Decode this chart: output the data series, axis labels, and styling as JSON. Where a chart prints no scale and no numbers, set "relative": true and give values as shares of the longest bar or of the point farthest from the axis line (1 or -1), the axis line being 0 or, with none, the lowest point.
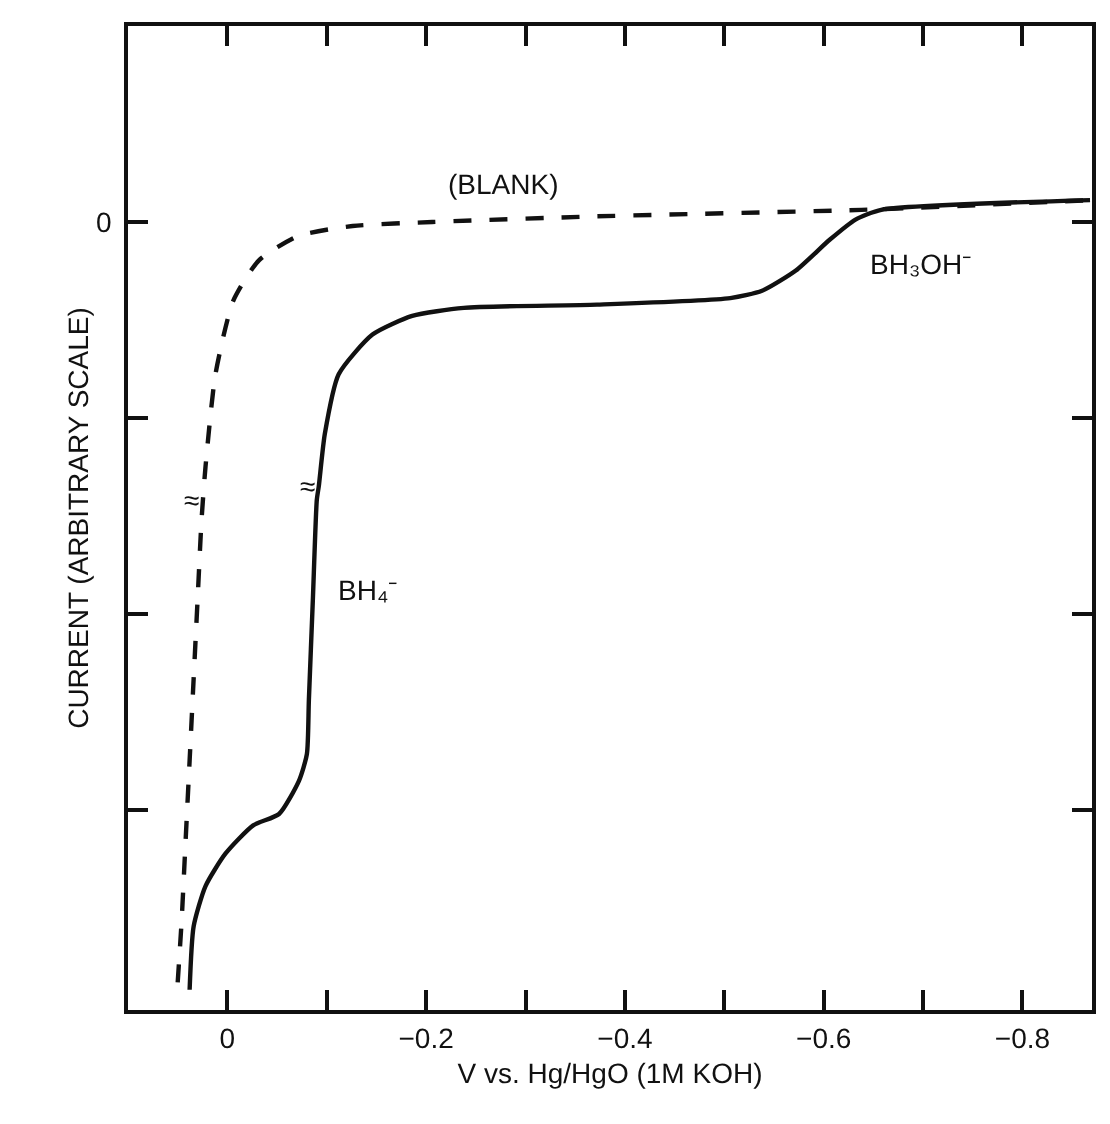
{
  "chart_data": {
    "type": "line",
    "relative": true,
    "xlabel": "V vs. Hg/HgO (1M KOH)",
    "ylabel": "CURRENT (ARBITRARY SCALE)",
    "xlim": [
      0.1,
      -0.87
    ],
    "xticks": [
      0,
      {
        "value": -0.1,
        "label": null
      },
      {
        "value": -0.2,
        "label": "−0.2"
      },
      {
        "value": -0.3,
        "label": null
      },
      {
        "value": -0.4,
        "label": "−0.4"
      },
      {
        "value": -0.5,
        "label": null
      },
      {
        "value": -0.6,
        "label": "−0.6"
      },
      {
        "value": -0.7,
        "label": null
      },
      {
        "value": -0.8,
        "label": "−0.8"
      }
    ],
    "marker": "none",
    "series": [
      {
        "color": "#111111",
        "line_style": "dashed",
        "x": [
          0.05,
          0.046,
          0.042,
          0.038,
          0.034,
          0.03,
          0.026,
          0.022,
          0.012,
          -0.006,
          -0.032,
          -0.072,
          -0.126,
          -0.206,
          -0.372,
          -0.638,
          -0.868
        ],
        "values": [
          0.034,
          0.111,
          0.21,
          0.308,
          0.408,
          0.506,
          0.605,
          0.671,
          0.785,
          0.876,
          0.926,
          0.956,
          0.968,
          0.973,
          0.98,
          0.988,
          1.0
        ]
      },
      {
        "color": "#111111",
        "line_style": "solid",
        "x": [
          0.038,
          0.034,
          0.022,
          0.002,
          -0.026,
          -0.052,
          -0.072,
          -0.08,
          -0.082,
          -0.086,
          -0.09,
          -0.092,
          -0.098,
          -0.112,
          -0.146,
          -0.186,
          -0.238,
          -0.372,
          -0.506,
          -0.538,
          -0.572,
          -0.606,
          -0.632,
          -0.658,
          -0.868
        ],
        "values": [
          0.025,
          0.103,
          0.153,
          0.193,
          0.228,
          0.242,
          0.283,
          0.316,
          0.383,
          0.506,
          0.63,
          0.647,
          0.711,
          0.785,
          0.834,
          0.857,
          0.867,
          0.871,
          0.879,
          0.888,
          0.913,
          0.951,
          0.976,
          0.988,
          1.0
        ]
      }
    ],
    "annotations": [
      "(BLANK)",
      "BH₄⁻",
      "BH₃OH⁻",
      "≈",
      "≈",
      "0"
    ]
  }
}
